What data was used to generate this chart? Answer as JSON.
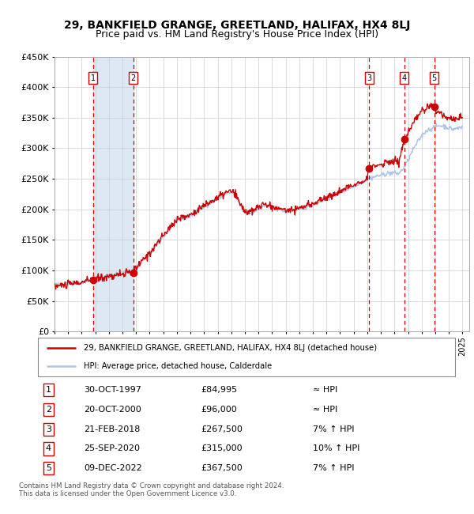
{
  "title": "29, BANKFIELD GRANGE, GREETLAND, HALIFAX, HX4 8LJ",
  "subtitle": "Price paid vs. HM Land Registry's House Price Index (HPI)",
  "ylim": [
    0,
    450000
  ],
  "yticks": [
    0,
    50000,
    100000,
    150000,
    200000,
    250000,
    300000,
    350000,
    400000,
    450000
  ],
  "ytick_labels": [
    "£0",
    "£50K",
    "£100K",
    "£150K",
    "£200K",
    "£250K",
    "£300K",
    "£350K",
    "£400K",
    "£450K"
  ],
  "xlim_start": 1995.0,
  "xlim_end": 2025.5,
  "hpi_color": "#aec6e8",
  "price_color": "#cc0000",
  "sale_marker_color": "#cc0000",
  "dashed_line_color": "#cc0000",
  "shade_color": "#dce9f5",
  "background_color": "#ffffff",
  "grid_color": "#cccccc",
  "sale_dates_x": [
    1997.83,
    2000.8,
    2018.13,
    2020.73,
    2022.93
  ],
  "sale_prices_y": [
    84995,
    96000,
    267500,
    315000,
    367500
  ],
  "sale_labels": [
    "1",
    "2",
    "3",
    "4",
    "5"
  ],
  "shade_regions": [
    [
      1997.83,
      2000.8
    ]
  ],
  "legend_line1": "29, BANKFIELD GRANGE, GREETLAND, HALIFAX, HX4 8LJ (detached house)",
  "legend_line2": "HPI: Average price, detached house, Calderdale",
  "table_rows": [
    [
      "1",
      "30-OCT-1997",
      "£84,995",
      "≈ HPI"
    ],
    [
      "2",
      "20-OCT-2000",
      "£96,000",
      "≈ HPI"
    ],
    [
      "3",
      "21-FEB-2018",
      "£267,500",
      "7% ↑ HPI"
    ],
    [
      "4",
      "25-SEP-2020",
      "£315,000",
      "10% ↑ HPI"
    ],
    [
      "5",
      "09-DEC-2022",
      "£367,500",
      "7% ↑ HPI"
    ]
  ],
  "footer": "Contains HM Land Registry data © Crown copyright and database right 2024.\nThis data is licensed under the Open Government Licence v3.0.",
  "title_fontsize": 10,
  "subtitle_fontsize": 9
}
